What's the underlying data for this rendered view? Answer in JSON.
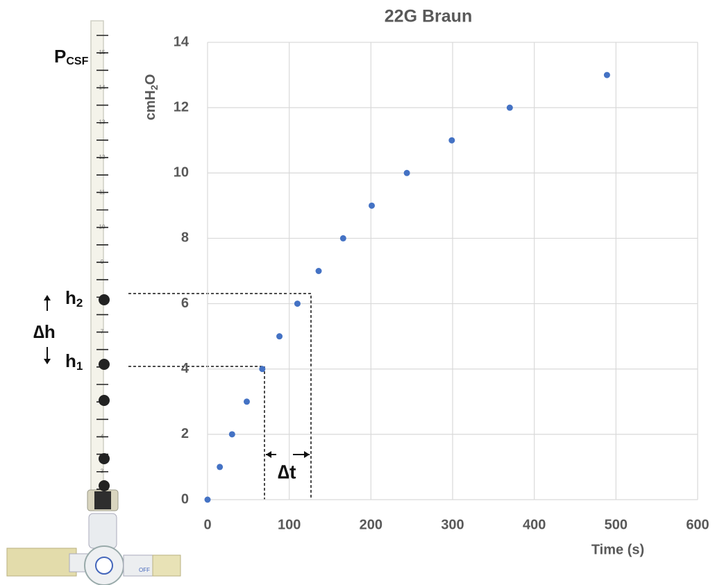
{
  "chart_data": {
    "type": "scatter",
    "title": "22G Braun",
    "y_label": [
      "cmH",
      "2",
      "O"
    ],
    "x_label": "Time (s)",
    "x": [
      0,
      15,
      30,
      48,
      67,
      88,
      110,
      136,
      166,
      201,
      244,
      299,
      370,
      489
    ],
    "values": [
      0,
      1,
      2,
      3,
      4,
      5,
      6,
      7,
      8,
      9,
      10,
      11,
      12,
      13
    ],
    "color": "#4472c4",
    "xlim": [
      0,
      600
    ],
    "xticks": [
      0,
      100,
      200,
      300,
      400,
      500,
      600
    ],
    "ylim": [
      0,
      14
    ],
    "yticks": [
      0,
      2,
      4,
      6,
      8,
      10,
      12,
      14
    ],
    "grid": true
  },
  "annotations": {
    "pcsf": [
      "P",
      "CSF"
    ],
    "h2": [
      "h",
      "2"
    ],
    "h1": [
      "h",
      "1"
    ],
    "dh": "∆h",
    "dt": "∆t"
  },
  "manometer": {
    "scale_labels": [
      15,
      14,
      13,
      12,
      11,
      10,
      9,
      7,
      4,
      3
    ],
    "off_label": "OFF"
  }
}
